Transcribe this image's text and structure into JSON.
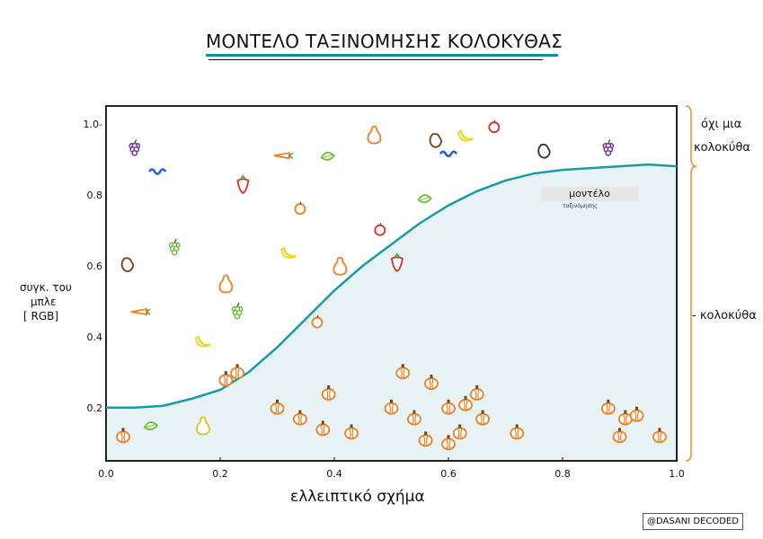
{
  "title": "ΜΟΝΤΕΛΟ ΤΑΞΙΝΟΜΗΣΗΣ ΚΟΛΟΚΥΘΑΣ",
  "colors": {
    "curve": "#1a9aa6",
    "fill": "#e7f3f5",
    "pumpkin": "#f07d1f",
    "stem": "#6b4a2a",
    "border": "#222222",
    "bracket": "#f28a2a"
  },
  "chart_data": {
    "type": "scatter",
    "title": "ΜΟΝΤΕΛΟ ΤΑΞΙΝΟΜΗΣΗΣ ΚΟΛΟΚΥΘΑΣ",
    "xlabel": "ελλειπτικό σχήμα",
    "ylabel_lines": [
      "συγκ. του",
      "μπλε",
      "[ RGB]"
    ],
    "xlim": [
      0,
      1
    ],
    "ylim": [
      0.05,
      1.05
    ],
    "x_ticks": [
      "0.0",
      "0.2",
      "0.4",
      "0.6",
      "0.8",
      "1.0"
    ],
    "y_ticks": [
      "0.2",
      "0.4",
      "0.6",
      "0.8",
      "1.0-"
    ],
    "decision_boundary": [
      [
        0.0,
        0.2
      ],
      [
        0.05,
        0.2
      ],
      [
        0.1,
        0.205
      ],
      [
        0.15,
        0.225
      ],
      [
        0.2,
        0.25
      ],
      [
        0.25,
        0.3
      ],
      [
        0.3,
        0.37
      ],
      [
        0.35,
        0.45
      ],
      [
        0.4,
        0.53
      ],
      [
        0.45,
        0.6
      ],
      [
        0.5,
        0.66
      ],
      [
        0.55,
        0.72
      ],
      [
        0.6,
        0.77
      ],
      [
        0.65,
        0.81
      ],
      [
        0.7,
        0.84
      ],
      [
        0.75,
        0.86
      ],
      [
        0.8,
        0.87
      ],
      [
        0.85,
        0.875
      ],
      [
        0.9,
        0.88
      ],
      [
        0.95,
        0.885
      ],
      [
        1.0,
        0.88
      ]
    ],
    "annotation": "μοντέλο",
    "annotation_sub": "ταξινόμησης",
    "series": [
      {
        "category": "pumpkin",
        "icon": "pumpkin-icon",
        "points": [
          [
            0.03,
            0.12
          ],
          [
            0.21,
            0.28
          ],
          [
            0.3,
            0.2
          ],
          [
            0.34,
            0.17
          ],
          [
            0.39,
            0.24
          ],
          [
            0.38,
            0.14
          ],
          [
            0.43,
            0.13
          ],
          [
            0.5,
            0.2
          ],
          [
            0.52,
            0.3
          ],
          [
            0.54,
            0.17
          ],
          [
            0.57,
            0.27
          ],
          [
            0.56,
            0.11
          ],
          [
            0.6,
            0.2
          ],
          [
            0.6,
            0.1
          ],
          [
            0.62,
            0.13
          ],
          [
            0.63,
            0.21
          ],
          [
            0.65,
            0.24
          ],
          [
            0.66,
            0.17
          ],
          [
            0.72,
            0.13
          ],
          [
            0.88,
            0.2
          ],
          [
            0.91,
            0.17
          ],
          [
            0.9,
            0.12
          ],
          [
            0.97,
            0.12
          ],
          [
            0.23,
            0.3
          ],
          [
            0.93,
            0.18
          ]
        ]
      },
      {
        "category": "not-pumpkin",
        "icon": "fruit-vegetable-icon",
        "points": [
          [
            0.05,
            0.93
          ],
          [
            0.09,
            0.86
          ],
          [
            0.12,
            0.65
          ],
          [
            0.04,
            0.6
          ],
          [
            0.06,
            0.47
          ],
          [
            0.08,
            0.15
          ],
          [
            0.17,
            0.15
          ],
          [
            0.21,
            0.55
          ],
          [
            0.23,
            0.47
          ],
          [
            0.17,
            0.38
          ],
          [
            0.24,
            0.83
          ],
          [
            0.31,
            0.91
          ],
          [
            0.32,
            0.63
          ],
          [
            0.34,
            0.76
          ],
          [
            0.39,
            0.91
          ],
          [
            0.41,
            0.6
          ],
          [
            0.37,
            0.44
          ],
          [
            0.48,
            0.7
          ],
          [
            0.51,
            0.61
          ],
          [
            0.47,
            0.97
          ],
          [
            0.56,
            0.79
          ],
          [
            0.58,
            0.95
          ],
          [
            0.6,
            0.91
          ],
          [
            0.63,
            0.96
          ],
          [
            0.68,
            0.99
          ],
          [
            0.77,
            0.92
          ],
          [
            0.88,
            0.93
          ]
        ]
      }
    ],
    "regions": [
      {
        "label_lines": [
          "όχι μια",
          "κολοκύθα"
        ]
      },
      {
        "label_lines": [
          "- κολοκύθα"
        ]
      }
    ]
  },
  "credit": "@DASANI DECODED"
}
